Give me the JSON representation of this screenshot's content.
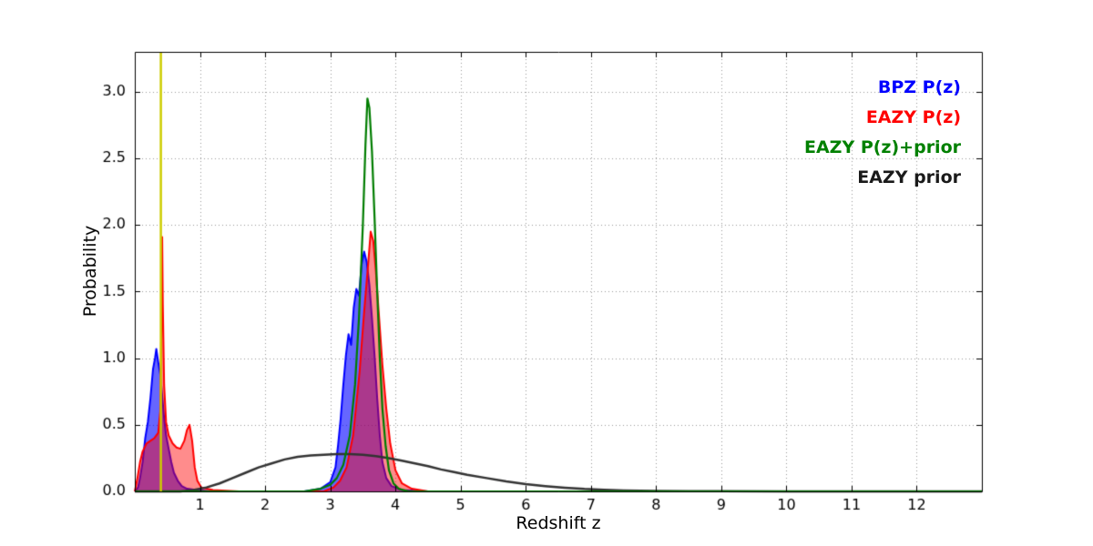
{
  "figure": {
    "background": "#ffffff",
    "xlabel": "Redshift z",
    "ylabel": "Probability",
    "axis_color": "#000000",
    "grid_color": "#999999",
    "tick_color": "#000000"
  },
  "legend": {
    "position": "upper right",
    "items": [
      {
        "label": "BPZ P(z)",
        "color": "#0000ff"
      },
      {
        "label": "EAZY P(z)",
        "color": "#ff0000"
      },
      {
        "label": "EAZY P(z)+prior",
        "color": "#008000"
      },
      {
        "label": "EAZY prior",
        "color": "#1a1a1a"
      }
    ]
  },
  "chart_data": {
    "type": "line",
    "title": "",
    "xlabel": "Redshift z",
    "ylabel": "Probability",
    "xlim": [
      0,
      13
    ],
    "ylim": [
      0,
      3.3
    ],
    "xticks": [
      1,
      2,
      3,
      4,
      5,
      6,
      7,
      8,
      9,
      10,
      11,
      12
    ],
    "xticklabels": [
      "1",
      "2",
      "3",
      "4",
      "5",
      "6",
      "7",
      "8",
      "9",
      "10",
      "11",
      "12"
    ],
    "yticks": [
      0.0,
      0.5,
      1.0,
      1.5,
      2.0,
      2.5,
      3.0
    ],
    "yticklabels": [
      "0.0",
      "0.5",
      "1.0",
      "1.5",
      "2.0",
      "2.5",
      "3.0"
    ],
    "grid": true,
    "grid_style": "dotted",
    "legend_position": "upper right",
    "vline": {
      "x": 0.4,
      "color": "#cdcd00",
      "lw": 2.5
    },
    "series": [
      {
        "name": "BPZ P(z)",
        "color": "#0000ff",
        "fill": "rgba(0,0,255,0.6)",
        "lw": 2,
        "points": [
          [
            0.0,
            0.0
          ],
          [
            0.05,
            0.03
          ],
          [
            0.08,
            0.1
          ],
          [
            0.12,
            0.22
          ],
          [
            0.16,
            0.4
          ],
          [
            0.2,
            0.52
          ],
          [
            0.24,
            0.7
          ],
          [
            0.28,
            0.92
          ],
          [
            0.31,
            1.0
          ],
          [
            0.33,
            1.07
          ],
          [
            0.36,
            0.97
          ],
          [
            0.39,
            0.88
          ],
          [
            0.42,
            0.72
          ],
          [
            0.45,
            0.55
          ],
          [
            0.48,
            0.42
          ],
          [
            0.52,
            0.32
          ],
          [
            0.56,
            0.22
          ],
          [
            0.6,
            0.14
          ],
          [
            0.66,
            0.08
          ],
          [
            0.72,
            0.04
          ],
          [
            0.8,
            0.02
          ],
          [
            0.95,
            0.01
          ],
          [
            1.2,
            0.0
          ],
          [
            2.6,
            0.0
          ],
          [
            2.85,
            0.02
          ],
          [
            3.0,
            0.07
          ],
          [
            3.08,
            0.18
          ],
          [
            3.12,
            0.35
          ],
          [
            3.16,
            0.55
          ],
          [
            3.2,
            0.8
          ],
          [
            3.24,
            1.02
          ],
          [
            3.28,
            1.18
          ],
          [
            3.32,
            1.1
          ],
          [
            3.36,
            1.38
          ],
          [
            3.4,
            1.52
          ],
          [
            3.44,
            1.47
          ],
          [
            3.48,
            1.7
          ],
          [
            3.52,
            1.8
          ],
          [
            3.56,
            1.72
          ],
          [
            3.6,
            1.55
          ],
          [
            3.64,
            1.3
          ],
          [
            3.68,
            1.02
          ],
          [
            3.72,
            0.7
          ],
          [
            3.76,
            0.42
          ],
          [
            3.8,
            0.22
          ],
          [
            3.86,
            0.1
          ],
          [
            3.94,
            0.04
          ],
          [
            4.1,
            0.01
          ],
          [
            4.5,
            0.0
          ],
          [
            13.0,
            0.0
          ]
        ]
      },
      {
        "name": "EAZY P(z)",
        "color": "#ff0000",
        "fill": "rgba(255,0,0,0.45)",
        "lw": 2,
        "points": [
          [
            0.0,
            0.0
          ],
          [
            0.04,
            0.1
          ],
          [
            0.08,
            0.22
          ],
          [
            0.12,
            0.3
          ],
          [
            0.18,
            0.36
          ],
          [
            0.24,
            0.38
          ],
          [
            0.3,
            0.4
          ],
          [
            0.36,
            0.44
          ],
          [
            0.39,
            0.6
          ],
          [
            0.41,
            1.3
          ],
          [
            0.42,
            1.91
          ],
          [
            0.43,
            1.4
          ],
          [
            0.45,
            0.8
          ],
          [
            0.48,
            0.52
          ],
          [
            0.52,
            0.42
          ],
          [
            0.58,
            0.36
          ],
          [
            0.64,
            0.33
          ],
          [
            0.7,
            0.32
          ],
          [
            0.76,
            0.38
          ],
          [
            0.8,
            0.46
          ],
          [
            0.84,
            0.5
          ],
          [
            0.88,
            0.38
          ],
          [
            0.92,
            0.18
          ],
          [
            0.96,
            0.08
          ],
          [
            1.02,
            0.03
          ],
          [
            1.2,
            0.01
          ],
          [
            1.6,
            0.0
          ],
          [
            2.9,
            0.0
          ],
          [
            3.05,
            0.03
          ],
          [
            3.15,
            0.08
          ],
          [
            3.25,
            0.18
          ],
          [
            3.35,
            0.42
          ],
          [
            3.45,
            0.9
          ],
          [
            3.52,
            1.35
          ],
          [
            3.58,
            1.7
          ],
          [
            3.62,
            1.95
          ],
          [
            3.66,
            1.88
          ],
          [
            3.7,
            1.65
          ],
          [
            3.75,
            1.3
          ],
          [
            3.8,
            0.95
          ],
          [
            3.86,
            0.62
          ],
          [
            3.92,
            0.36
          ],
          [
            4.0,
            0.16
          ],
          [
            4.1,
            0.06
          ],
          [
            4.25,
            0.02
          ],
          [
            4.5,
            0.0
          ],
          [
            13.0,
            0.0
          ]
        ]
      },
      {
        "name": "EAZY prior",
        "color": "#333333",
        "fill": null,
        "lw": 2.5,
        "points": [
          [
            0.0,
            0.0
          ],
          [
            0.7,
            0.0
          ],
          [
            0.9,
            0.01
          ],
          [
            1.1,
            0.03
          ],
          [
            1.3,
            0.06
          ],
          [
            1.5,
            0.1
          ],
          [
            1.7,
            0.14
          ],
          [
            1.9,
            0.18
          ],
          [
            2.1,
            0.21
          ],
          [
            2.3,
            0.24
          ],
          [
            2.5,
            0.26
          ],
          [
            2.7,
            0.27
          ],
          [
            2.9,
            0.275
          ],
          [
            3.1,
            0.28
          ],
          [
            3.3,
            0.28
          ],
          [
            3.5,
            0.275
          ],
          [
            3.7,
            0.265
          ],
          [
            3.9,
            0.25
          ],
          [
            4.1,
            0.23
          ],
          [
            4.3,
            0.21
          ],
          [
            4.5,
            0.19
          ],
          [
            4.7,
            0.165
          ],
          [
            4.9,
            0.145
          ],
          [
            5.1,
            0.125
          ],
          [
            5.4,
            0.1
          ],
          [
            5.7,
            0.075
          ],
          [
            6.0,
            0.055
          ],
          [
            6.3,
            0.04
          ],
          [
            6.6,
            0.028
          ],
          [
            6.9,
            0.018
          ],
          [
            7.2,
            0.012
          ],
          [
            7.5,
            0.007
          ],
          [
            8.0,
            0.004
          ],
          [
            8.5,
            0.002
          ],
          [
            9.0,
            0.001
          ],
          [
            10.0,
            0.0005
          ],
          [
            13.0,
            0.0
          ]
        ]
      },
      {
        "name": "EAZY P(z)+prior",
        "color": "#007d00",
        "fill": null,
        "lw": 2.2,
        "points": [
          [
            0.0,
            0.0
          ],
          [
            2.6,
            0.0
          ],
          [
            2.85,
            0.02
          ],
          [
            3.0,
            0.05
          ],
          [
            3.1,
            0.1
          ],
          [
            3.2,
            0.2
          ],
          [
            3.3,
            0.42
          ],
          [
            3.38,
            0.8
          ],
          [
            3.44,
            1.3
          ],
          [
            3.5,
            2.0
          ],
          [
            3.54,
            2.6
          ],
          [
            3.57,
            2.95
          ],
          [
            3.6,
            2.88
          ],
          [
            3.64,
            2.55
          ],
          [
            3.68,
            2.05
          ],
          [
            3.72,
            1.5
          ],
          [
            3.76,
            1.0
          ],
          [
            3.8,
            0.62
          ],
          [
            3.85,
            0.34
          ],
          [
            3.9,
            0.16
          ],
          [
            3.97,
            0.06
          ],
          [
            4.05,
            0.02
          ],
          [
            4.2,
            0.0
          ],
          [
            13.0,
            0.0
          ]
        ]
      }
    ]
  }
}
